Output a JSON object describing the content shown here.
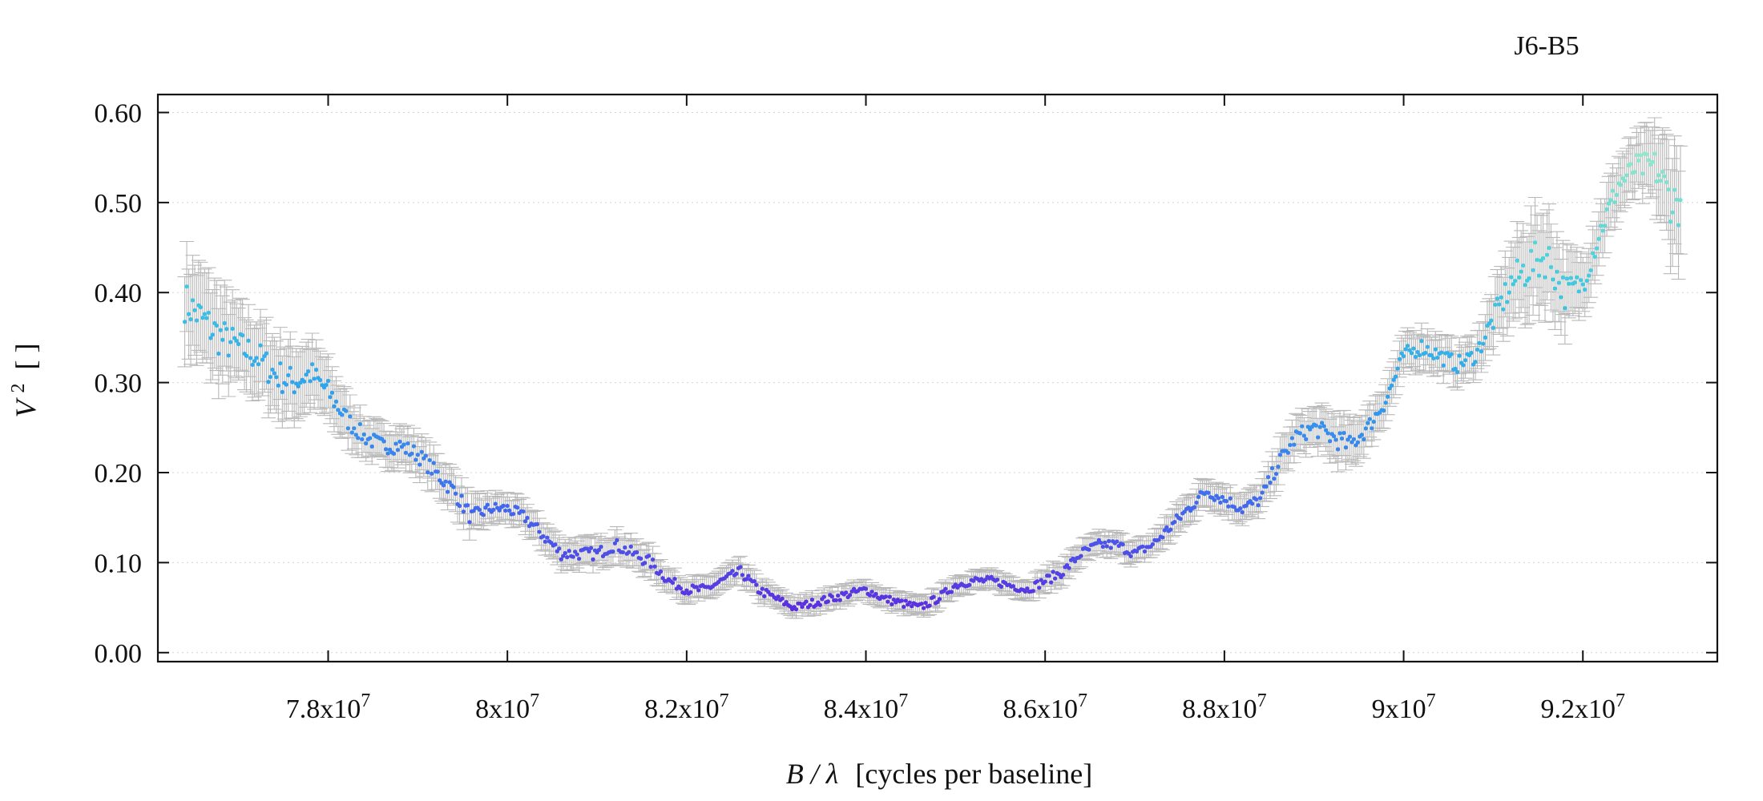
{
  "chart_data": {
    "type": "scatter",
    "title": "J6-B5",
    "xlabel": "[cycles per baseline]",
    "xlabel_var": "B / λ",
    "ylabel": "[ ]",
    "ylabel_var": "V",
    "ylabel_exp": "2",
    "xlim": [
      76100000,
      93500000
    ],
    "ylim": [
      -0.01,
      0.62
    ],
    "grid": "horizontal-dotted",
    "x_ticks": [
      {
        "value": 78000000,
        "mantissa": "7.8",
        "exponent": "7"
      },
      {
        "value": 80000000,
        "mantissa": "8",
        "exponent": "7"
      },
      {
        "value": 82000000,
        "mantissa": "8.2",
        "exponent": "7"
      },
      {
        "value": 84000000,
        "mantissa": "8.4",
        "exponent": "7"
      },
      {
        "value": 86000000,
        "mantissa": "8.6",
        "exponent": "7"
      },
      {
        "value": 88000000,
        "mantissa": "8.8",
        "exponent": "7"
      },
      {
        "value": 90000000,
        "mantissa": "9",
        "exponent": "7"
      },
      {
        "value": 92000000,
        "mantissa": "9.2",
        "exponent": "7"
      }
    ],
    "y_ticks": [
      {
        "value": 0.0,
        "label": "0.00"
      },
      {
        "value": 0.1,
        "label": "0.10"
      },
      {
        "value": 0.2,
        "label": "0.20"
      },
      {
        "value": 0.3,
        "label": "0.30"
      },
      {
        "value": 0.4,
        "label": "0.40"
      },
      {
        "value": 0.5,
        "label": "0.50"
      },
      {
        "value": 0.6,
        "label": "0.60"
      }
    ],
    "error_bar_color": "#b8b8b8",
    "color_scale": [
      "#5b2fe0",
      "#3f6ff0",
      "#2ea6ee",
      "#43cfe0",
      "#8ee8cc"
    ],
    "x": [
      76400000,
      76600000,
      76800000,
      77000000,
      77200000,
      77400000,
      77600000,
      77800000,
      78000000,
      78200000,
      78400000,
      78600000,
      78800000,
      79000000,
      79200000,
      79400000,
      79600000,
      79800000,
      80000000,
      80200000,
      80400000,
      80600000,
      80800000,
      81000000,
      81200000,
      81400000,
      81600000,
      81800000,
      82000000,
      82200000,
      82400000,
      82600000,
      82800000,
      83000000,
      83200000,
      83400000,
      83600000,
      83800000,
      84000000,
      84200000,
      84400000,
      84600000,
      84800000,
      85000000,
      85200000,
      85400000,
      85600000,
      85800000,
      86000000,
      86200000,
      86400000,
      86600000,
      86800000,
      87000000,
      87200000,
      87400000,
      87600000,
      87800000,
      88000000,
      88200000,
      88400000,
      88600000,
      88800000,
      89000000,
      89200000,
      89400000,
      89600000,
      89800000,
      90000000,
      90200000,
      90400000,
      90600000,
      90800000,
      91000000,
      91200000,
      91400000,
      91600000,
      91800000,
      92000000,
      92200000,
      92400000,
      92600000,
      92800000,
      93000000
    ],
    "y": [
      0.39,
      0.37,
      0.35,
      0.34,
      0.33,
      0.31,
      0.3,
      0.31,
      0.29,
      0.26,
      0.24,
      0.23,
      0.23,
      0.22,
      0.2,
      0.18,
      0.15,
      0.16,
      0.16,
      0.15,
      0.13,
      0.11,
      0.11,
      0.11,
      0.12,
      0.11,
      0.1,
      0.08,
      0.07,
      0.07,
      0.08,
      0.09,
      0.07,
      0.06,
      0.05,
      0.055,
      0.06,
      0.065,
      0.07,
      0.06,
      0.055,
      0.05,
      0.06,
      0.075,
      0.08,
      0.08,
      0.075,
      0.07,
      0.08,
      0.09,
      0.11,
      0.12,
      0.12,
      0.11,
      0.12,
      0.14,
      0.16,
      0.18,
      0.17,
      0.16,
      0.17,
      0.21,
      0.24,
      0.25,
      0.24,
      0.23,
      0.25,
      0.28,
      0.33,
      0.34,
      0.33,
      0.32,
      0.33,
      0.37,
      0.41,
      0.43,
      0.44,
      0.4,
      0.41,
      0.47,
      0.52,
      0.54,
      0.54,
      0.5
    ],
    "err": [
      0.05,
      0.05,
      0.05,
      0.04,
      0.04,
      0.04,
      0.04,
      0.035,
      0.03,
      0.025,
      0.02,
      0.02,
      0.02,
      0.02,
      0.02,
      0.02,
      0.02,
      0.015,
      0.015,
      0.015,
      0.015,
      0.015,
      0.015,
      0.015,
      0.015,
      0.015,
      0.015,
      0.012,
      0.012,
      0.012,
      0.012,
      0.012,
      0.012,
      0.01,
      0.01,
      0.01,
      0.01,
      0.01,
      0.01,
      0.01,
      0.01,
      0.01,
      0.01,
      0.01,
      0.01,
      0.01,
      0.01,
      0.01,
      0.012,
      0.012,
      0.012,
      0.012,
      0.012,
      0.012,
      0.012,
      0.015,
      0.015,
      0.015,
      0.015,
      0.015,
      0.015,
      0.02,
      0.02,
      0.02,
      0.025,
      0.025,
      0.02,
      0.02,
      0.02,
      0.02,
      0.02,
      0.02,
      0.02,
      0.03,
      0.04,
      0.05,
      0.05,
      0.04,
      0.03,
      0.03,
      0.03,
      0.03,
      0.04,
      0.06
    ]
  }
}
